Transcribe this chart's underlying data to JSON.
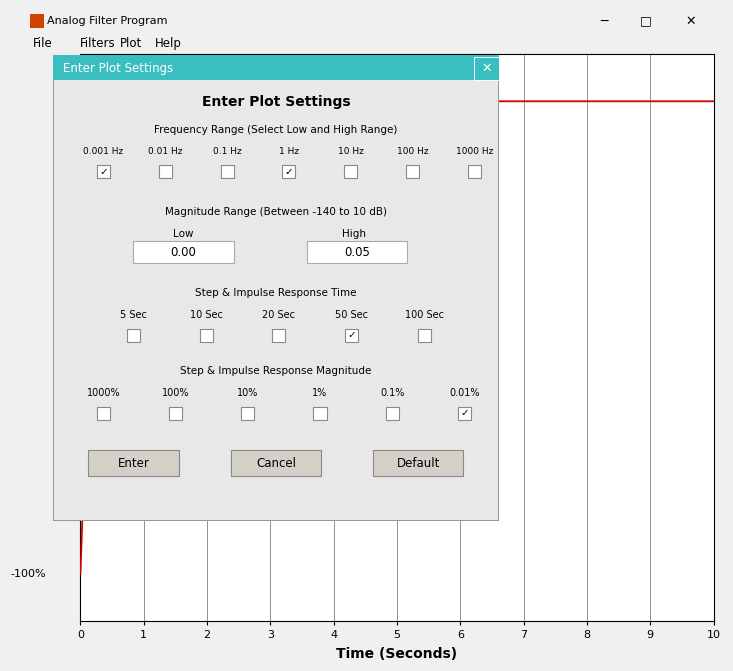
{
  "title": "Analog Filter Program",
  "plot_xlabel": "Time (Seconds)",
  "plot_ylabel": "-100%",
  "plot_xlim": [
    0,
    10
  ],
  "curve_color": "#cc0000",
  "dialog_title": "Enter Plot Settings",
  "dialog_bg": "#e8e8e8",
  "dialog_titlebar_bg": "#3abfc0",
  "freq_label": "Frequency Range (Select Low and High Range)",
  "freq_options": [
    "0.001 Hz",
    "0.01 Hz",
    "0.1 Hz",
    "1 Hz",
    "10 Hz",
    "100 Hz",
    "1000 Hz"
  ],
  "freq_checked": [
    true,
    false,
    false,
    true,
    false,
    false,
    false
  ],
  "mag_label": "Magnitude Range (Between -140 to 10 dB)",
  "mag_low_label": "Low",
  "mag_high_label": "High",
  "mag_low_val": "0.00",
  "mag_high_val": "0.05",
  "time_label": "Step & Impulse Response Time",
  "time_options": [
    "5 Sec",
    "10 Sec",
    "20 Sec",
    "50 Sec",
    "100 Sec"
  ],
  "time_checked": [
    false,
    false,
    false,
    true,
    false
  ],
  "impulse_label": "Step & Impulse Response Magnitude",
  "impulse_options": [
    "1000%",
    "100%",
    "10%",
    "1%",
    "0.1%",
    "0.01%"
  ],
  "impulse_checked": [
    false,
    false,
    false,
    false,
    false,
    true
  ],
  "btn_enter": "Enter",
  "btn_cancel": "Cancel",
  "btn_default": "Default",
  "window_title": "Analog Filter Program",
  "menubar_items": [
    "File",
    "Filters",
    "Plot",
    "Help"
  ]
}
